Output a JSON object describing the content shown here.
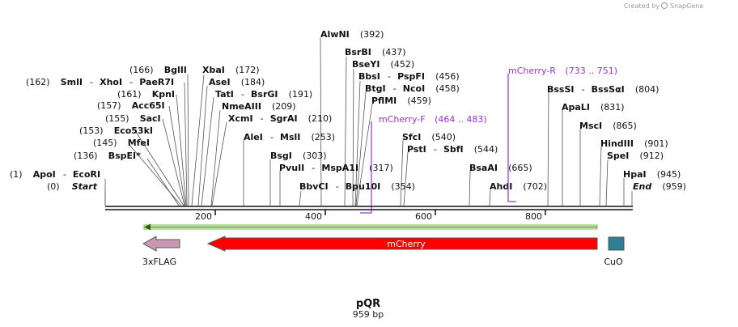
{
  "credit": {
    "prefix": "Created by",
    "brand": "SnapGene"
  },
  "map": {
    "name": "pQR",
    "length_label": "959 bp",
    "length": 959
  },
  "sites": [
    {
      "name": "ApoI",
      "pos": "(1)",
      "extra": "EcoRI",
      "side": "left"
    },
    {
      "name": "Start",
      "pos": "(0)",
      "italic": true,
      "side": "left"
    },
    {
      "name": "BspEI*",
      "pos": "(136)",
      "side": "left"
    },
    {
      "name": "MfeI",
      "pos": "(145)",
      "side": "left"
    },
    {
      "name": "Eco53kI",
      "pos": "(153)",
      "side": "left"
    },
    {
      "name": "SacI",
      "pos": "(155)",
      "side": "left"
    },
    {
      "name": "Acc65I",
      "pos": "(157)",
      "side": "left"
    },
    {
      "name": "KpnI",
      "pos": "(161)",
      "side": "left"
    },
    {
      "name": "SmlI",
      "pos": "(162)",
      "extra": "XhoI",
      "extra2": "PaeR7I",
      "side": "left"
    },
    {
      "name": "BglII",
      "pos": "(166)",
      "side": "left"
    },
    {
      "name": "XbaI",
      "pos": "(172)",
      "side": "right"
    },
    {
      "name": "AseI",
      "pos": "(184)",
      "side": "right"
    },
    {
      "name": "TatI",
      "pos": "(191)",
      "extra": "BsrGI",
      "side": "right"
    },
    {
      "name": "NmeAIII",
      "pos": "(209)",
      "side": "right"
    },
    {
      "name": "XcmI",
      "pos": "(210)",
      "extra": "SgrAI",
      "side": "right"
    },
    {
      "name": "AleI",
      "pos": "(253)",
      "extra": "MslI",
      "side": "right"
    },
    {
      "name": "BsgI",
      "pos": "(303)",
      "side": "right"
    },
    {
      "name": "PvuII",
      "pos": "(317)",
      "extra": "MspA1I",
      "side": "right"
    },
    {
      "name": "BbvCI",
      "pos": "(354)",
      "extra": "Bpu10I",
      "side": "right"
    },
    {
      "name": "AlwNI",
      "pos": "(392)",
      "side": "right"
    },
    {
      "name": "BsrBI",
      "pos": "(437)",
      "side": "right"
    },
    {
      "name": "BseYI",
      "pos": "(452)",
      "side": "right"
    },
    {
      "name": "BbsI",
      "pos": "(456)",
      "extra": "PspFI",
      "side": "right"
    },
    {
      "name": "BtgI",
      "pos": "(458)",
      "extra": "NcoI",
      "side": "right"
    },
    {
      "name": "PflMI",
      "pos": "(459)",
      "side": "right"
    },
    {
      "name": "SfcI",
      "pos": "(540)",
      "side": "right"
    },
    {
      "name": "PstI",
      "pos": "(544)",
      "extra": "SbfI",
      "side": "right"
    },
    {
      "name": "BsaAI",
      "pos": "(665)",
      "side": "right"
    },
    {
      "name": "AhdI",
      "pos": "(702)",
      "side": "right"
    },
    {
      "name": "BssSI",
      "pos": "(804)",
      "extra": "BssSαI",
      "side": "right"
    },
    {
      "name": "ApaLI",
      "pos": "(831)",
      "side": "right"
    },
    {
      "name": "MscI",
      "pos": "(865)",
      "side": "right"
    },
    {
      "name": "HindIII",
      "pos": "(901)",
      "side": "right"
    },
    {
      "name": "SpeI",
      "pos": "(912)",
      "side": "right"
    },
    {
      "name": "HpaI",
      "pos": "(945)",
      "side": "right"
    },
    {
      "name": "End",
      "pos": "(959)",
      "italic": true,
      "side": "right"
    }
  ],
  "primers": [
    {
      "name": "mCherry-F",
      "range": "(464 .. 483)"
    },
    {
      "name": "mCherry-R",
      "range": "(733 .. 751)"
    }
  ],
  "ticks": [
    "200",
    "400",
    "600",
    "800"
  ],
  "features": [
    {
      "name": "3xFLAG",
      "color": "#c996b4"
    },
    {
      "name": "mCherry",
      "color": "#ff0000",
      "text_color": "#ffffff"
    },
    {
      "name": "CuO",
      "color": "#2e7f93"
    }
  ],
  "colors": {
    "primer": "#9b30d9",
    "orf": "#7ac143",
    "backbone": "#111111"
  }
}
